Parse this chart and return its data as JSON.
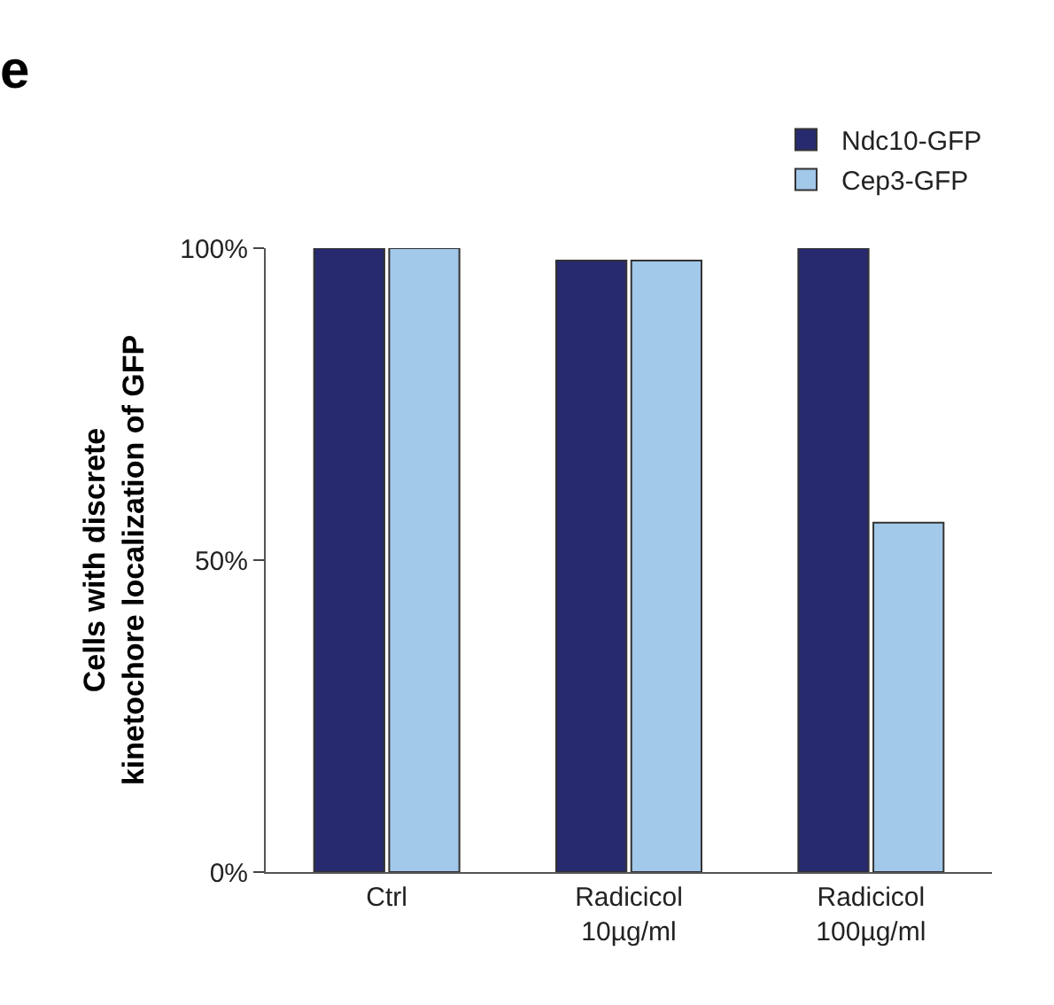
{
  "chart_data": {
    "type": "bar",
    "title": "e",
    "ylabel": "Cells with discrete\nkinetochore localization of GFP",
    "categories": [
      "Ctrl",
      "Radicicol\n10µg/ml",
      "Radicicol\n100µg/ml"
    ],
    "series": [
      {
        "name": "Ndc10-GFP",
        "color": "#272a6e",
        "values": [
          100,
          98,
          100
        ]
      },
      {
        "name": "Cep3-GFP",
        "color": "#a2c8ea",
        "values": [
          100,
          98,
          56
        ]
      }
    ],
    "ylim": [
      0,
      100
    ],
    "yticks": [
      {
        "value": 0,
        "label": "0%"
      },
      {
        "value": 50,
        "label": "50%"
      },
      {
        "value": 100,
        "label": "100%"
      }
    ],
    "legend": "top right"
  }
}
